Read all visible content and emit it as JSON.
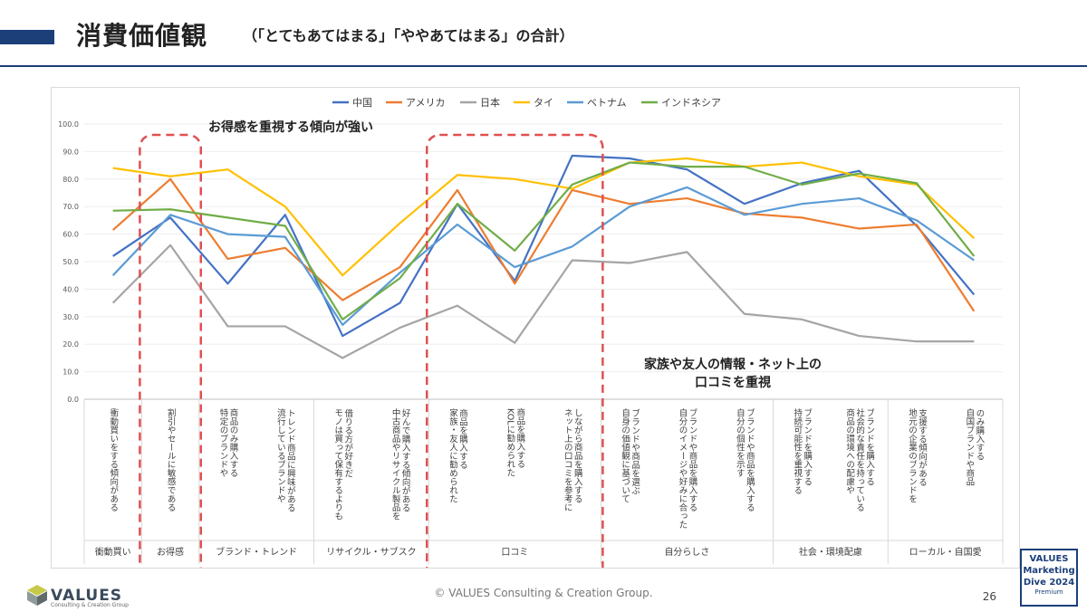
{
  "header": {
    "title": "消費価値観",
    "subtitle": "（「とてもあてはまる」「ややあてはまる」の合計）"
  },
  "chart_data": {
    "type": "line",
    "ylim": [
      0,
      100
    ],
    "yticks": [
      "0.0",
      "10.0",
      "20.0",
      "30.0",
      "40.0",
      "50.0",
      "60.0",
      "70.0",
      "80.0",
      "90.0",
      "100.0"
    ],
    "categories": [
      "衝動買いをする傾向がある",
      "割引やセールに敏感である",
      "特定のブランドや\n商品のみ購入する",
      "流行しているブランドや\nトレンド商品に興味がある",
      "モノは買って保有するよりも\n借りる方が好きだ",
      "中古商品やリサイクル製品を\n好んで購入する傾向がある",
      "家族・友人に勧められた\n商品を購入する",
      "KOLに勧められた\n商品を購入する",
      "ネット上の口コミを参考に\nしながら商品を購入する",
      "自身の価値観に基づいて\nブランドや商品を選ぶ",
      "自分のイメージや好みに合った\nブランドや商品を購入する",
      "自分の個性を示す\nブランドや商品を購入する",
      "持続可能性を重視する\nブランドを購入する",
      "商品の環境への配慮や\n社会的な責任を持っている\nブランドを購入する",
      "地元の企業のブランドを\n支援する傾向がある",
      "自国ブランドや商品\nのみ購入する"
    ],
    "groups": [
      {
        "label": "衝動買い",
        "start": 0,
        "end": 0
      },
      {
        "label": "お得感",
        "start": 1,
        "end": 1
      },
      {
        "label": "ブランド・トレンド",
        "start": 2,
        "end": 3
      },
      {
        "label": "リサイクル・サブスク",
        "start": 4,
        "end": 5
      },
      {
        "label": "口コミ",
        "start": 6,
        "end": 8
      },
      {
        "label": "自分らしさ",
        "start": 9,
        "end": 11
      },
      {
        "label": "社会・環境配慮",
        "start": 12,
        "end": 13
      },
      {
        "label": "ローカル・自国愛",
        "start": 14,
        "end": 15
      }
    ],
    "series": [
      {
        "name": "中国",
        "color": "#4472c4",
        "values": [
          52,
          66,
          42,
          67,
          23,
          35,
          71,
          43,
          88.5,
          87.5,
          83.5,
          71,
          78.5,
          83,
          63,
          38
        ]
      },
      {
        "name": "アメリカ",
        "color": "#ed7d31",
        "values": [
          61.5,
          80,
          51,
          55,
          36,
          48,
          76,
          42,
          76,
          71,
          73,
          67.5,
          66,
          62,
          63.5,
          32
        ]
      },
      {
        "name": "日本",
        "color": "#a5a5a5",
        "values": [
          35,
          56,
          26.5,
          26.5,
          15,
          26,
          34,
          20.5,
          50.5,
          49.5,
          53.5,
          31,
          29,
          23,
          21,
          21
        ]
      },
      {
        "name": "タイ",
        "color": "#ffc000",
        "values": [
          84,
          81,
          83.5,
          70,
          45,
          64,
          81.5,
          80,
          76.5,
          86,
          87.5,
          84.5,
          86,
          81,
          78,
          58.5
        ]
      },
      {
        "name": "ベトナム",
        "color": "#5b9bd5",
        "values": [
          45,
          67,
          60,
          59,
          27,
          46,
          63.5,
          48,
          55.5,
          70,
          77,
          67,
          71,
          73,
          65,
          50.5
        ]
      },
      {
        "name": "インドネシア",
        "color": "#70ad47",
        "values": [
          68.5,
          69,
          66,
          63,
          29,
          44,
          71,
          54,
          78,
          86,
          84.5,
          84.5,
          78,
          82,
          78.5,
          52
        ]
      }
    ],
    "annotations": [
      {
        "text": "お得感を重視する傾向が強い"
      },
      {
        "text": "家族や友人の情報・ネット上の\n口コミを重視"
      }
    ]
  },
  "footer": {
    "copyright": "© VALUES Consulting & Creation Group.",
    "page": "26",
    "logo_text": "VALUES",
    "logo_sub": "Consulting & Creation Group",
    "badge": [
      "VALUES",
      "Marketing",
      "Dive 2024",
      "Premium"
    ]
  }
}
